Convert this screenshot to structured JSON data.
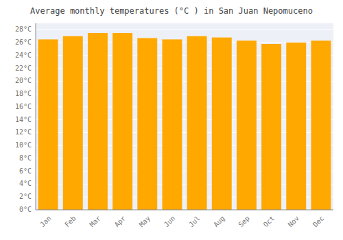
{
  "chart_data": {
    "type": "bar",
    "title": "Average monthly temperatures (°C ) in San Juan Nepomuceno",
    "categories": [
      "Jan",
      "Feb",
      "Mar",
      "Apr",
      "May",
      "Jun",
      "Jul",
      "Aug",
      "Sep",
      "Oct",
      "Nov",
      "Dec"
    ],
    "values": [
      26.5,
      27.0,
      27.5,
      27.5,
      26.7,
      26.5,
      27.0,
      26.8,
      26.3,
      25.8,
      26.0,
      26.3
    ],
    "color": "#FFA800",
    "ylim": [
      0,
      29
    ],
    "yticks": [
      {
        "value": 0,
        "label": "0°C"
      },
      {
        "value": 2,
        "label": "2°C"
      },
      {
        "value": 4,
        "label": "4°C"
      },
      {
        "value": 6,
        "label": "6°C"
      },
      {
        "value": 8,
        "label": "8°C"
      },
      {
        "value": 10,
        "label": "10°C"
      },
      {
        "value": 12,
        "label": "12°C"
      },
      {
        "value": 14,
        "label": "14°C"
      },
      {
        "value": 16,
        "label": "16°C"
      },
      {
        "value": 18,
        "label": "18°C"
      },
      {
        "value": 20,
        "label": "20°C"
      },
      {
        "value": 22,
        "label": "22°C"
      },
      {
        "value": 24,
        "label": "24°C"
      },
      {
        "value": 26,
        "label": "26°C"
      },
      {
        "value": 28,
        "label": "28°C"
      }
    ],
    "grid": true
  }
}
